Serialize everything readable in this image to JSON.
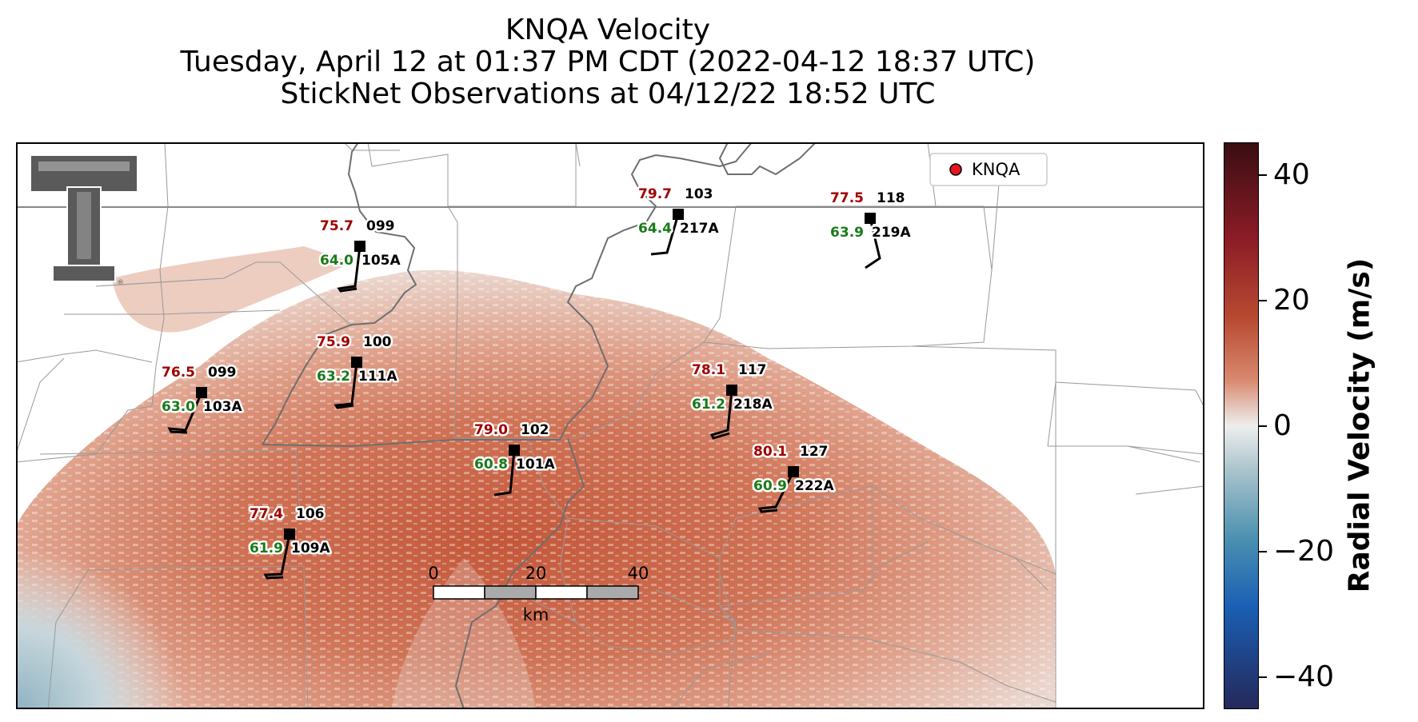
{
  "title": {
    "line1": "KNQA Velocity",
    "line2": "Tuesday, April 12 at 01:37 PM CDT (2022-04-12 18:37 UTC)",
    "line3": "StickNet Observations at 04/12/22 18:52 UTC"
  },
  "legend": {
    "label": "KNQA",
    "marker_color": "#e8141c"
  },
  "logo": {
    "name": "Texas Tech double-T logo"
  },
  "scale_bar": {
    "ticks": [
      "0",
      "20",
      "40"
    ],
    "unit": "km"
  },
  "colorbar": {
    "title": "Radial Velocity (m/s)",
    "ticks": [
      "40",
      "20",
      "0",
      "−20",
      "−40"
    ],
    "range": [
      -45,
      45
    ],
    "colormap": "red-white-blue diverging"
  },
  "colors": {
    "temperature_text": "#a00000",
    "dewpoint_text": "#1a7a1a",
    "station_text": "#000000",
    "velocity_echo": "#c96548"
  },
  "stations": [
    {
      "temp": "75.7",
      "dew": "64.0",
      "num": "099",
      "id": "105A"
    },
    {
      "temp": "79.7",
      "dew": "64.4",
      "num": "103",
      "id": "217A"
    },
    {
      "temp": "77.5",
      "dew": "63.9",
      "num": "118",
      "id": "219A"
    },
    {
      "temp": "75.9",
      "dew": "63.2",
      "num": "100",
      "id": "111A"
    },
    {
      "temp": "76.5",
      "dew": "63.0",
      "num": "099",
      "id": "103A"
    },
    {
      "temp": "78.1",
      "dew": "61.2",
      "num": "117",
      "id": "218A"
    },
    {
      "temp": "79.0",
      "dew": "60.8",
      "num": "102",
      "id": "101A"
    },
    {
      "temp": "80.1",
      "dew": "60.9",
      "num": "127",
      "id": "222A"
    },
    {
      "temp": "77.4",
      "dew": "61.9",
      "num": "106",
      "id": "109A"
    }
  ]
}
